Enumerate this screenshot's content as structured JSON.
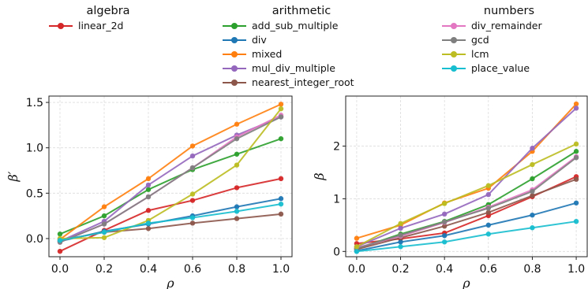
{
  "legend": {
    "groups": [
      {
        "title": "algebra",
        "items": [
          {
            "label": "linear_2d",
            "color": "#d62728"
          }
        ]
      },
      {
        "title": "arithmetic",
        "items": [
          {
            "label": "add_sub_multiple",
            "color": "#2ca02c"
          },
          {
            "label": "div",
            "color": "#1f77b4"
          },
          {
            "label": "mixed",
            "color": "#ff7f0e"
          },
          {
            "label": "mul_div_multiple",
            "color": "#9467bd"
          },
          {
            "label": "nearest_integer_root",
            "color": "#8c564b"
          }
        ]
      },
      {
        "title": "numbers",
        "items": [
          {
            "label": "div_remainder",
            "color": "#e377c2"
          },
          {
            "label": "gcd",
            "color": "#7f7f7f"
          },
          {
            "label": "lcm",
            "color": "#bcbd22"
          },
          {
            "label": "place_value",
            "color": "#17becf"
          }
        ]
      }
    ]
  },
  "chart_data": [
    {
      "type": "line",
      "xlabel": "ρ",
      "ylabel": "β′",
      "xlim": [
        -0.05,
        1.05
      ],
      "ylim": [
        -0.2,
        1.57
      ],
      "xticks": [
        "0.0",
        "0.2",
        "0.4",
        "0.6",
        "0.8",
        "1.0"
      ],
      "yticks": [
        "0.0",
        "0.5",
        "1.0",
        "1.5"
      ],
      "grid": true,
      "x": [
        0.0,
        0.2,
        0.4,
        0.6,
        0.8,
        1.0
      ],
      "series": [
        {
          "name": "linear_2d",
          "color": "#d62728",
          "values": [
            -0.14,
            0.09,
            0.31,
            0.42,
            0.56,
            0.66
          ]
        },
        {
          "name": "add_sub_multiple",
          "color": "#2ca02c",
          "values": [
            0.05,
            0.25,
            0.54,
            0.76,
            0.93,
            1.1
          ]
        },
        {
          "name": "div",
          "color": "#1f77b4",
          "values": [
            -0.03,
            0.08,
            0.16,
            0.25,
            0.35,
            0.44
          ]
        },
        {
          "name": "mixed",
          "color": "#ff7f0e",
          "values": [
            -0.01,
            0.35,
            0.66,
            1.02,
            1.26,
            1.48
          ]
        },
        {
          "name": "mul_div_multiple",
          "color": "#9467bd",
          "values": [
            -0.03,
            0.19,
            0.59,
            0.91,
            1.14,
            1.34
          ]
        },
        {
          "name": "nearest_integer_root",
          "color": "#8c564b",
          "values": [
            -0.02,
            0.07,
            0.11,
            0.17,
            0.22,
            0.27
          ]
        },
        {
          "name": "div_remainder",
          "color": "#e377c2",
          "values": [
            -0.04,
            0.16,
            0.46,
            0.78,
            1.12,
            1.36
          ]
        },
        {
          "name": "gcd",
          "color": "#7f7f7f",
          "values": [
            -0.04,
            0.16,
            0.46,
            0.78,
            1.1,
            1.34
          ]
        },
        {
          "name": "lcm",
          "color": "#bcbd22",
          "values": [
            0.0,
            0.01,
            0.2,
            0.49,
            0.81,
            1.43
          ]
        },
        {
          "name": "place_value",
          "color": "#17becf",
          "values": [
            -0.02,
            0.07,
            0.17,
            0.23,
            0.3,
            0.38
          ]
        }
      ]
    },
    {
      "type": "line",
      "xlabel": "ρ",
      "ylabel": "β",
      "xlim": [
        -0.05,
        1.05
      ],
      "ylim": [
        -0.1,
        2.95
      ],
      "xticks": [
        "0.0",
        "0.2",
        "0.4",
        "0.6",
        "0.8",
        "1.0"
      ],
      "yticks": [
        "0",
        "1",
        "2"
      ],
      "grid": true,
      "x": [
        0.0,
        0.2,
        0.4,
        0.6,
        0.8,
        1.0
      ],
      "series": [
        {
          "name": "linear_2d",
          "color": "#d62728",
          "values": [
            0.15,
            0.24,
            0.35,
            0.68,
            1.04,
            1.42
          ]
        },
        {
          "name": "add_sub_multiple",
          "color": "#2ca02c",
          "values": [
            0.05,
            0.33,
            0.57,
            0.89,
            1.38,
            1.9
          ]
        },
        {
          "name": "div",
          "color": "#1f77b4",
          "values": [
            0.01,
            0.18,
            0.3,
            0.5,
            0.69,
            0.92
          ]
        },
        {
          "name": "mixed",
          "color": "#ff7f0e",
          "values": [
            0.25,
            0.5,
            0.92,
            1.2,
            1.9,
            2.8
          ]
        },
        {
          "name": "mul_div_multiple",
          "color": "#9467bd",
          "values": [
            0.09,
            0.44,
            0.71,
            1.08,
            1.96,
            2.72
          ]
        },
        {
          "name": "nearest_integer_root",
          "color": "#8c564b",
          "values": [
            0.04,
            0.26,
            0.48,
            0.74,
            1.06,
            1.37
          ]
        },
        {
          "name": "div_remainder",
          "color": "#e377c2",
          "values": [
            0.07,
            0.29,
            0.55,
            0.84,
            1.17,
            1.8
          ]
        },
        {
          "name": "gcd",
          "color": "#7f7f7f",
          "values": [
            0.06,
            0.31,
            0.56,
            0.82,
            1.14,
            1.78
          ]
        },
        {
          "name": "lcm",
          "color": "#bcbd22",
          "values": [
            0.09,
            0.53,
            0.91,
            1.25,
            1.65,
            2.04
          ]
        },
        {
          "name": "place_value",
          "color": "#17becf",
          "values": [
            0.0,
            0.09,
            0.18,
            0.33,
            0.45,
            0.57
          ]
        }
      ]
    }
  ]
}
